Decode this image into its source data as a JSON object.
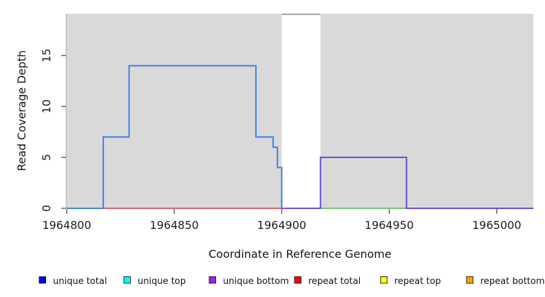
{
  "chart_data": {
    "type": "line",
    "title": "",
    "xlabel": "Coordinate in Reference Genome",
    "ylabel": "Read Coverage Depth",
    "xlim": [
      1964800,
      1965017
    ],
    "ylim": [
      0,
      19.1
    ],
    "x_ticks": [
      1964800,
      1964850,
      1964900,
      1964950,
      1965000
    ],
    "y_ticks": [
      0,
      5,
      10,
      15
    ],
    "grid": false,
    "legend_position": "bottom",
    "shaded_background_color": "#d9d9d9",
    "shaded_regions": [
      {
        "x0": 1964800,
        "x1": 1964900
      },
      {
        "x0": 1964918,
        "x1": 1965017
      }
    ],
    "gap_region": {
      "x0": 1964900,
      "x1": 1964918,
      "top_border_color": "#8c8c8c"
    },
    "plot_edge_color": "#9c9c9c",
    "series": [
      {
        "name": "unique total",
        "color": "#3d7ee4",
        "steps": [
          [
            1964800,
            0
          ],
          [
            1964817,
            7
          ],
          [
            1964829,
            14
          ],
          [
            1964888,
            7
          ],
          [
            1964896,
            6
          ],
          [
            1964898,
            4
          ],
          [
            1964900,
            0
          ]
        ]
      },
      {
        "name": "unique bottom",
        "color": "#6b46e2",
        "steps": [
          [
            1964900,
            0
          ],
          [
            1964918,
            5
          ],
          [
            1964958,
            0
          ],
          [
            1965017,
            0
          ]
        ]
      }
    ],
    "zero_line_segments": [
      {
        "x0": 1964800,
        "x1": 1964817,
        "color": "#5a57e2"
      },
      {
        "x0": 1964817,
        "x1": 1964900,
        "color": "#d04a60"
      },
      {
        "x0": 1964900,
        "x1": 1964918,
        "color": "#6a5ae8"
      },
      {
        "x0": 1964918,
        "x1": 1964958,
        "color": "#63be6e"
      },
      {
        "x0": 1964958,
        "x1": 1965017,
        "color": "#7a5cea"
      }
    ]
  },
  "legend": {
    "items": [
      {
        "label": "unique total",
        "color": "#0000ff"
      },
      {
        "label": "unique top",
        "color": "#00ffff"
      },
      {
        "label": "unique bottom",
        "color": "#a020f0"
      },
      {
        "label": "repeat total",
        "color": "#ff0000"
      },
      {
        "label": "repeat top",
        "color": "#ffff00"
      },
      {
        "label": "repeat bottom",
        "color": "#ffa500"
      }
    ]
  }
}
